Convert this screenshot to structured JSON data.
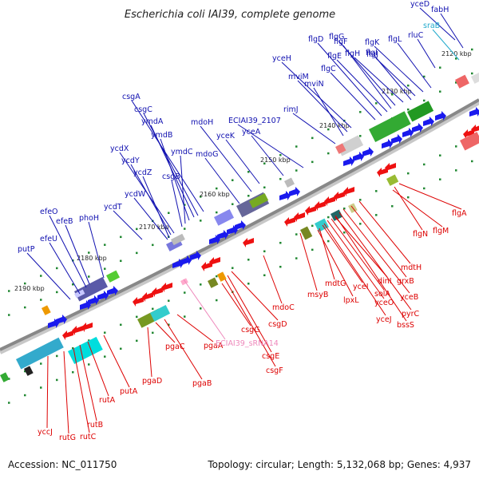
{
  "title": "Escherichia coli IAI39, complete genome",
  "footer": {
    "accession": "Accession: NC_011750",
    "topology": "Topology: circular; Length: 5,132,068 bp; Genes: 4,937"
  },
  "colors": {
    "forward_label": "#1010b0",
    "reverse_label": "#dd0000",
    "rna_label": "#ee88bb",
    "srna_label": "#22aacc",
    "backbone": "#888888"
  },
  "kbp_labels": [
    {
      "text": "2120 kbp",
      "t": 24
    },
    {
      "text": "2130 kbp",
      "t": 47
    },
    {
      "text": "2140 kbp",
      "t": 68
    },
    {
      "text": "2150 kbp",
      "t": 92
    },
    {
      "text": "2160 kbp",
      "t": 117
    },
    {
      "text": "2170 kbp",
      "t": 146
    },
    {
      "text": "2180 kbp",
      "t": 174
    },
    {
      "text": "2190 kbp",
      "t": 205
    }
  ],
  "forward_genes": [
    "yceD",
    "fabH",
    "sraB",
    "rluC",
    "flgL",
    "flgK",
    "flgJ",
    "flgI",
    "flgH",
    "flgG",
    "flgF",
    "flgE",
    "flgD",
    "flgC",
    "yceH",
    "mviM",
    "mviN",
    "rimJ",
    "ECIAI39_2107",
    "yceA",
    "yceK",
    "mdoH",
    "mdoG",
    "csgA",
    "csgC",
    "ymdA",
    "ymdB",
    "ymdC",
    "csgB",
    "ycdX",
    "ycdY",
    "ycdZ",
    "ycdW",
    "ycdT",
    "phoH",
    "efeB",
    "efeO",
    "efeU",
    "putP"
  ],
  "reverse_genes": [
    "flgA",
    "flgN",
    "flgM",
    "mdtH",
    "grxB",
    "yceB",
    "pyrC",
    "bssS",
    "dinI",
    "solA",
    "yceO",
    "yceJ",
    "yceI",
    "mdtG",
    "lpxL",
    "msyB",
    "mdoC",
    "csgD",
    "csgE",
    "csgF",
    "csgG",
    "pgaA",
    "pgaB",
    "pgaC",
    "pgaD",
    "putA",
    "rutA",
    "rutB",
    "rutC",
    "rutG",
    "yccJ"
  ],
  "rna_genes": [
    "ECIAI39_sRNA14"
  ]
}
